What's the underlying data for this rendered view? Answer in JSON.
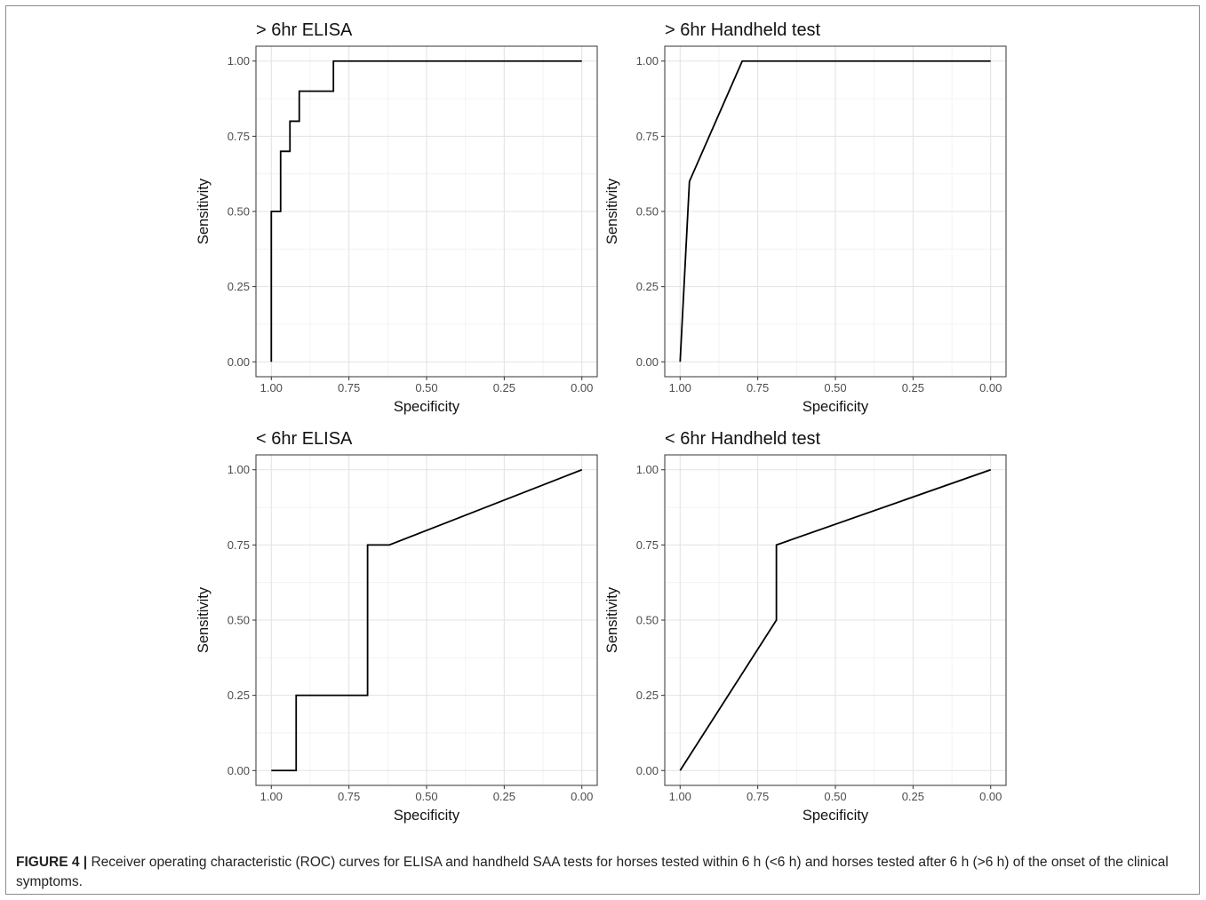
{
  "panels": [
    {
      "title": "> 6hr ELISA",
      "xlabel": "Specificity",
      "ylabel": "Sensitivity",
      "xticks": [
        "1.00",
        "0.75",
        "0.50",
        "0.25",
        "0.00"
      ],
      "yticks": [
        "0.00",
        "0.25",
        "0.50",
        "0.75",
        "1.00"
      ]
    },
    {
      "title": "> 6hr Handheld test",
      "xlabel": "Specificity",
      "ylabel": "Sensitivity",
      "xticks": [
        "1.00",
        "0.75",
        "0.50",
        "0.25",
        "0.00"
      ],
      "yticks": [
        "0.00",
        "0.25",
        "0.50",
        "0.75",
        "1.00"
      ]
    },
    {
      "title": "< 6hr ELISA",
      "xlabel": "Specificity",
      "ylabel": "Sensitivity",
      "xticks": [
        "1.00",
        "0.75",
        "0.50",
        "0.25",
        "0.00"
      ],
      "yticks": [
        "0.00",
        "0.25",
        "0.50",
        "0.75",
        "1.00"
      ]
    },
    {
      "title": "< 6hr Handheld test",
      "xlabel": "Specificity",
      "ylabel": "Sensitivity",
      "xticks": [
        "1.00",
        "0.75",
        "0.50",
        "0.25",
        "0.00"
      ],
      "yticks": [
        "0.00",
        "0.25",
        "0.50",
        "0.75",
        "1.00"
      ]
    }
  ],
  "caption": {
    "label": "FIGURE 4 |",
    "text": " Receiver operating characteristic (ROC) curves for ELISA and handheld SAA tests for horses tested within 6 h (<6 h) and horses tested after 6 h (>6 h) of the onset of the clinical symptoms."
  },
  "chart_data": [
    {
      "type": "line",
      "title": "> 6hr ELISA",
      "xlabel": "Specificity",
      "ylabel": "Sensitivity",
      "xlim": [
        1.0,
        0.0
      ],
      "ylim": [
        0.0,
        1.0
      ],
      "x_reversed": true,
      "grid": true,
      "points": [
        [
          1.0,
          0.0
        ],
        [
          1.0,
          0.5
        ],
        [
          0.97,
          0.5
        ],
        [
          0.97,
          0.7
        ],
        [
          0.94,
          0.7
        ],
        [
          0.94,
          0.8
        ],
        [
          0.91,
          0.8
        ],
        [
          0.91,
          0.9
        ],
        [
          0.8,
          0.9
        ],
        [
          0.8,
          1.0
        ],
        [
          0.0,
          1.0
        ]
      ]
    },
    {
      "type": "line",
      "title": "> 6hr Handheld test",
      "xlabel": "Specificity",
      "ylabel": "Sensitivity",
      "xlim": [
        1.0,
        0.0
      ],
      "ylim": [
        0.0,
        1.0
      ],
      "x_reversed": true,
      "grid": true,
      "points": [
        [
          1.0,
          0.0
        ],
        [
          0.97,
          0.6
        ],
        [
          0.8,
          1.0
        ],
        [
          0.0,
          1.0
        ]
      ]
    },
    {
      "type": "line",
      "title": "< 6hr ELISA",
      "xlabel": "Specificity",
      "ylabel": "Sensitivity",
      "xlim": [
        1.0,
        0.0
      ],
      "ylim": [
        0.0,
        1.0
      ],
      "x_reversed": true,
      "grid": true,
      "points": [
        [
          1.0,
          0.0
        ],
        [
          0.92,
          0.0
        ],
        [
          0.92,
          0.25
        ],
        [
          0.69,
          0.25
        ],
        [
          0.69,
          0.75
        ],
        [
          0.62,
          0.75
        ],
        [
          0.0,
          1.0
        ]
      ]
    },
    {
      "type": "line",
      "title": "< 6hr Handheld test",
      "xlabel": "Specificity",
      "ylabel": "Sensitivity",
      "xlim": [
        1.0,
        0.0
      ],
      "ylim": [
        0.0,
        1.0
      ],
      "x_reversed": true,
      "grid": true,
      "points": [
        [
          1.0,
          0.0
        ],
        [
          0.69,
          0.5
        ],
        [
          0.69,
          0.75
        ],
        [
          0.0,
          1.0
        ]
      ]
    }
  ]
}
